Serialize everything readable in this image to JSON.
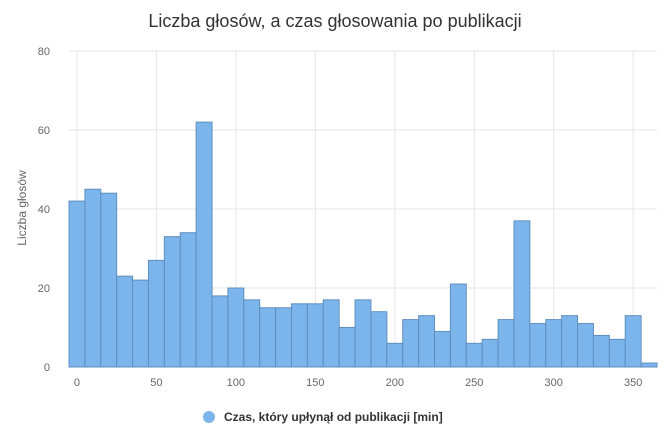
{
  "chart_data": {
    "type": "bar",
    "title": "Liczba głosów, a czas głosowania po publikacji",
    "ylabel": "Liczba głosów",
    "xlabel": "",
    "legend": {
      "label": "Czas, który upłynął od publikacji [min]",
      "placement": "bottom-center"
    },
    "color": "#7cb5ec",
    "bin_width": 10,
    "xlim": [
      -5,
      365
    ],
    "ylim": [
      0,
      80
    ],
    "x_ticks": [
      0,
      50,
      100,
      150,
      200,
      250,
      300,
      350
    ],
    "y_ticks": [
      0,
      20,
      40,
      60,
      80
    ],
    "grid": true,
    "x": [
      0,
      10,
      20,
      30,
      40,
      50,
      60,
      70,
      80,
      90,
      100,
      110,
      120,
      130,
      140,
      150,
      160,
      170,
      180,
      190,
      200,
      210,
      220,
      230,
      240,
      250,
      260,
      270,
      280,
      290,
      300,
      310,
      320,
      330,
      340,
      350,
      360
    ],
    "values": [
      42,
      45,
      44,
      23,
      22,
      27,
      33,
      34,
      62,
      18,
      20,
      17,
      15,
      15,
      16,
      16,
      17,
      10,
      17,
      14,
      6,
      12,
      13,
      9,
      21,
      6,
      7,
      12,
      37,
      11,
      12,
      13,
      11,
      8,
      7,
      13,
      1
    ]
  }
}
